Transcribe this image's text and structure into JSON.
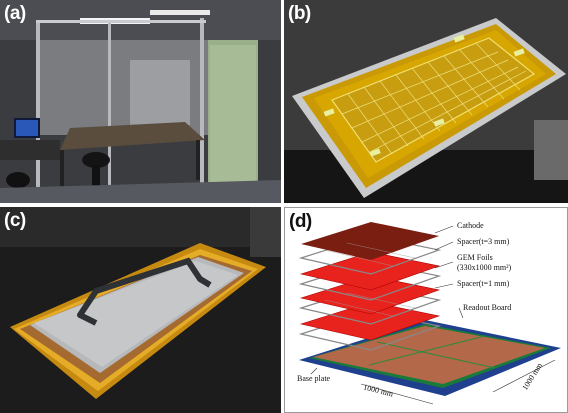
{
  "panels": {
    "a": {
      "label": "(a)"
    },
    "b": {
      "label": "(b)"
    },
    "c": {
      "label": "(c)"
    },
    "d": {
      "label": "(d)",
      "annotations": {
        "cathode": "Cathode",
        "spacer_top": "Spacer(t=3 mm)",
        "gem_foils_line1": "GEM Foils",
        "gem_foils_line2": "(330x1000 mm²)",
        "spacer_bottom": "Spacer(t=1 mm)",
        "readout_board": "Readout Board",
        "base_plate": "Base plate",
        "dim_length": "1000 mm",
        "dim_width": "1000 mm"
      }
    }
  },
  "colors": {
    "kapton": "#d8a700",
    "gem_foil": "#e8231e",
    "cathode": "#7a1e12",
    "readout": "#b4684a",
    "base_plate": "#1f3f8f"
  }
}
